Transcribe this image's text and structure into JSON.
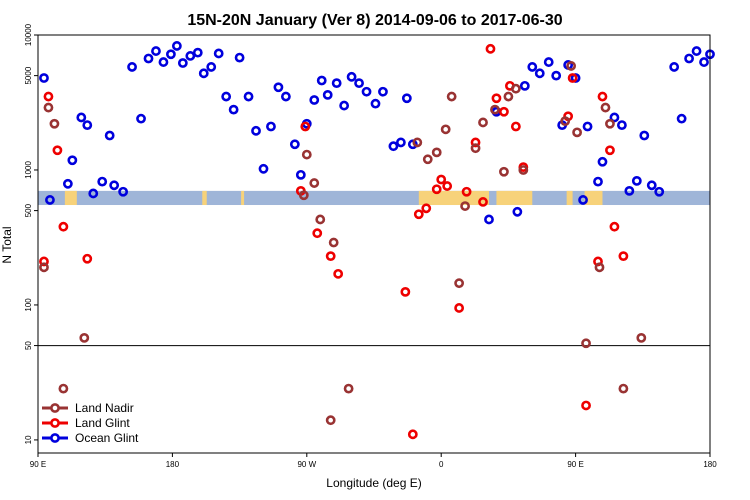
{
  "chart_data": {
    "type": "scatter",
    "title": "15N-20N January (Ver 8)   2014-09-06 to 2017-06-30",
    "xlabel": "Longitude (deg E)",
    "ylabel": "N Total",
    "x_ticks": [
      {
        "value": 90,
        "label": "90 E"
      },
      {
        "value": 180,
        "label": "180"
      },
      {
        "value": 270,
        "label": "90 W"
      },
      {
        "value": 360,
        "label": "0"
      },
      {
        "value": 450,
        "label": "90 E"
      },
      {
        "value": 540,
        "label": "180"
      }
    ],
    "xlim": [
      90,
      540
    ],
    "y_scale": "log",
    "ylim": [
      8,
      10000
    ],
    "y_ticks": [
      10,
      50,
      100,
      500,
      1000,
      5000,
      10000
    ],
    "y_tick_labels": [
      "10",
      "50",
      "100",
      "500",
      "1000",
      "5000",
      "10000"
    ],
    "reference_line_y": 50,
    "band_range": [
      550,
      700
    ],
    "band_color": "#9fb5d8",
    "land_color": "#f7d27a",
    "legend_position": "bottom-left",
    "series": [
      {
        "name": "Ocean Glint",
        "color": "#0000dd",
        "points": [
          {
            "x": 94,
            "y": 4800
          },
          {
            "x": 98,
            "y": 600
          },
          {
            "x": 110,
            "y": 790
          },
          {
            "x": 113,
            "y": 1180
          },
          {
            "x": 119,
            "y": 2450
          },
          {
            "x": 123,
            "y": 2150
          },
          {
            "x": 127,
            "y": 670
          },
          {
            "x": 133,
            "y": 820
          },
          {
            "x": 138,
            "y": 1800
          },
          {
            "x": 141,
            "y": 770
          },
          {
            "x": 147,
            "y": 690
          },
          {
            "x": 153,
            "y": 5800
          },
          {
            "x": 159,
            "y": 2400
          },
          {
            "x": 164,
            "y": 6700
          },
          {
            "x": 169,
            "y": 7600
          },
          {
            "x": 174,
            "y": 6300
          },
          {
            "x": 179,
            "y": 7200
          },
          {
            "x": 183,
            "y": 8300
          },
          {
            "x": 187,
            "y": 6200
          },
          {
            "x": 192,
            "y": 7000
          },
          {
            "x": 197,
            "y": 7400
          },
          {
            "x": 201,
            "y": 5200
          },
          {
            "x": 206,
            "y": 5800
          },
          {
            "x": 211,
            "y": 7300
          },
          {
            "x": 216,
            "y": 3500
          },
          {
            "x": 221,
            "y": 2800
          },
          {
            "x": 225,
            "y": 6800
          },
          {
            "x": 231,
            "y": 3500
          },
          {
            "x": 236,
            "y": 1950
          },
          {
            "x": 241,
            "y": 1020
          },
          {
            "x": 246,
            "y": 2100
          },
          {
            "x": 251,
            "y": 4100
          },
          {
            "x": 256,
            "y": 3500
          },
          {
            "x": 262,
            "y": 1550
          },
          {
            "x": 266,
            "y": 920
          },
          {
            "x": 270,
            "y": 2200
          },
          {
            "x": 275,
            "y": 3300
          },
          {
            "x": 280,
            "y": 4600
          },
          {
            "x": 284,
            "y": 3600
          },
          {
            "x": 290,
            "y": 4400
          },
          {
            "x": 295,
            "y": 3000
          },
          {
            "x": 300,
            "y": 4900
          },
          {
            "x": 305,
            "y": 4400
          },
          {
            "x": 310,
            "y": 3800
          },
          {
            "x": 316,
            "y": 3100
          },
          {
            "x": 321,
            "y": 3800
          },
          {
            "x": 328,
            "y": 1500
          },
          {
            "x": 333,
            "y": 1600
          },
          {
            "x": 337,
            "y": 3400
          },
          {
            "x": 341,
            "y": 1550
          },
          {
            "x": 392,
            "y": 430
          },
          {
            "x": 397,
            "y": 2700
          },
          {
            "x": 411,
            "y": 490
          },
          {
            "x": 416,
            "y": 4200
          },
          {
            "x": 421,
            "y": 5800
          },
          {
            "x": 426,
            "y": 5200
          },
          {
            "x": 432,
            "y": 6300
          },
          {
            "x": 437,
            "y": 5000
          },
          {
            "x": 441,
            "y": 2150
          },
          {
            "x": 445,
            "y": 6000
          },
          {
            "x": 450,
            "y": 4800
          },
          {
            "x": 455,
            "y": 600
          },
          {
            "x": 458,
            "y": 2100
          },
          {
            "x": 465,
            "y": 820
          },
          {
            "x": 468,
            "y": 1150
          },
          {
            "x": 476,
            "y": 2450
          },
          {
            "x": 481,
            "y": 2150
          },
          {
            "x": 486,
            "y": 700
          },
          {
            "x": 491,
            "y": 830
          },
          {
            "x": 496,
            "y": 1800
          },
          {
            "x": 501,
            "y": 770
          },
          {
            "x": 506,
            "y": 690
          },
          {
            "x": 516,
            "y": 5800
          },
          {
            "x": 521,
            "y": 2400
          },
          {
            "x": 526,
            "y": 6700
          },
          {
            "x": 531,
            "y": 7600
          },
          {
            "x": 536,
            "y": 6300
          },
          {
            "x": 540,
            "y": 7200
          }
        ]
      },
      {
        "name": "Land Glint",
        "color": "#ee0000",
        "points": [
          {
            "x": 94,
            "y": 210
          },
          {
            "x": 97,
            "y": 3500
          },
          {
            "x": 103,
            "y": 1400
          },
          {
            "x": 107,
            "y": 380
          },
          {
            "x": 123,
            "y": 220
          },
          {
            "x": 266,
            "y": 700
          },
          {
            "x": 269,
            "y": 2100
          },
          {
            "x": 277,
            "y": 340
          },
          {
            "x": 286,
            "y": 230
          },
          {
            "x": 291,
            "y": 170
          },
          {
            "x": 336,
            "y": 125
          },
          {
            "x": 341,
            "y": 11
          },
          {
            "x": 345,
            "y": 470
          },
          {
            "x": 350,
            "y": 520
          },
          {
            "x": 357,
            "y": 720
          },
          {
            "x": 360,
            "y": 850
          },
          {
            "x": 364,
            "y": 760
          },
          {
            "x": 372,
            "y": 95
          },
          {
            "x": 377,
            "y": 690
          },
          {
            "x": 383,
            "y": 1600
          },
          {
            "x": 388,
            "y": 580
          },
          {
            "x": 393,
            "y": 7900
          },
          {
            "x": 397,
            "y": 3400
          },
          {
            "x": 402,
            "y": 2700
          },
          {
            "x": 406,
            "y": 4200
          },
          {
            "x": 410,
            "y": 2100
          },
          {
            "x": 415,
            "y": 1050
          },
          {
            "x": 445,
            "y": 2500
          },
          {
            "x": 448,
            "y": 4800
          },
          {
            "x": 457,
            "y": 18
          },
          {
            "x": 465,
            "y": 210
          },
          {
            "x": 468,
            "y": 3500
          },
          {
            "x": 473,
            "y": 1400
          },
          {
            "x": 476,
            "y": 380
          },
          {
            "x": 482,
            "y": 230
          }
        ]
      },
      {
        "name": "Land Nadir",
        "color": "#993333",
        "points": [
          {
            "x": 94,
            "y": 190
          },
          {
            "x": 97,
            "y": 2900
          },
          {
            "x": 101,
            "y": 2200
          },
          {
            "x": 107,
            "y": 24
          },
          {
            "x": 121,
            "y": 57
          },
          {
            "x": 268,
            "y": 650
          },
          {
            "x": 270,
            "y": 1300
          },
          {
            "x": 275,
            "y": 800
          },
          {
            "x": 279,
            "y": 430
          },
          {
            "x": 286,
            "y": 14
          },
          {
            "x": 288,
            "y": 290
          },
          {
            "x": 298,
            "y": 24
          },
          {
            "x": 344,
            "y": 1600
          },
          {
            "x": 351,
            "y": 1200
          },
          {
            "x": 357,
            "y": 1350
          },
          {
            "x": 363,
            "y": 2000
          },
          {
            "x": 367,
            "y": 3500
          },
          {
            "x": 372,
            "y": 145
          },
          {
            "x": 376,
            "y": 540
          },
          {
            "x": 383,
            "y": 1450
          },
          {
            "x": 388,
            "y": 2250
          },
          {
            "x": 396,
            "y": 2800
          },
          {
            "x": 402,
            "y": 970
          },
          {
            "x": 405,
            "y": 3500
          },
          {
            "x": 410,
            "y": 4000
          },
          {
            "x": 415,
            "y": 1000
          },
          {
            "x": 443,
            "y": 2300
          },
          {
            "x": 447,
            "y": 5900
          },
          {
            "x": 451,
            "y": 1900
          },
          {
            "x": 457,
            "y": 52
          },
          {
            "x": 466,
            "y": 190
          },
          {
            "x": 470,
            "y": 2900
          },
          {
            "x": 473,
            "y": 2200
          },
          {
            "x": 482,
            "y": 24
          },
          {
            "x": 494,
            "y": 57
          }
        ]
      }
    ]
  }
}
